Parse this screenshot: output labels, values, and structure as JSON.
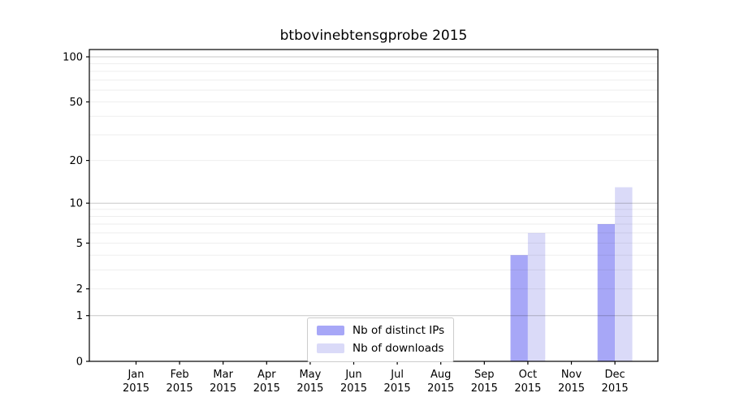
{
  "chart_data": {
    "type": "bar",
    "title": "btbovinebtensgprobe 2015",
    "x_year_line": "2015",
    "categories": [
      "Jan",
      "Feb",
      "Mar",
      "Apr",
      "May",
      "Jun",
      "Jul",
      "Aug",
      "Sep",
      "Oct",
      "Nov",
      "Dec"
    ],
    "series": [
      {
        "name": "Nb of distinct IPs",
        "color": "#a7a7f7",
        "values": [
          0,
          0,
          0,
          0,
          0,
          0,
          0,
          0,
          0,
          4,
          0,
          7
        ]
      },
      {
        "name": "Nb of downloads",
        "color": "#dadaf8",
        "values": [
          0,
          0,
          0,
          0,
          0,
          0,
          0,
          0,
          0,
          6,
          0,
          13
        ]
      }
    ],
    "xlabel": "",
    "ylabel": "",
    "yscale": "log1p",
    "ylim": [
      0,
      113
    ],
    "y_tick_labels": [
      0,
      1,
      2,
      5,
      10,
      20,
      50,
      100
    ],
    "y_grid_major": [
      1,
      10,
      100
    ],
    "y_grid_minor": [
      2,
      3,
      4,
      5,
      6,
      7,
      8,
      9,
      20,
      30,
      40,
      50,
      60,
      70,
      80,
      90
    ],
    "grid": true,
    "legend_position": "lower center"
  }
}
